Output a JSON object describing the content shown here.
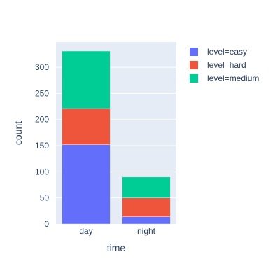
{
  "chart_data": {
    "type": "bar",
    "stacked": true,
    "categories": [
      "day",
      "night"
    ],
    "series": [
      {
        "name": "level=easy",
        "values": [
          152,
          14
        ],
        "color": "#636efa"
      },
      {
        "name": "level=hard",
        "values": [
          69,
          36
        ],
        "color": "#ef553b"
      },
      {
        "name": "level=medium",
        "values": [
          110,
          40
        ],
        "color": "#00cc96"
      }
    ],
    "xlabel": "time",
    "ylabel": "count",
    "ylim": [
      0,
      348.4
    ],
    "yticks": [
      0,
      50,
      100,
      150,
      200,
      250,
      300
    ],
    "grid": true,
    "legend_position": "top-right",
    "plot_background": "#e5ecf6"
  }
}
